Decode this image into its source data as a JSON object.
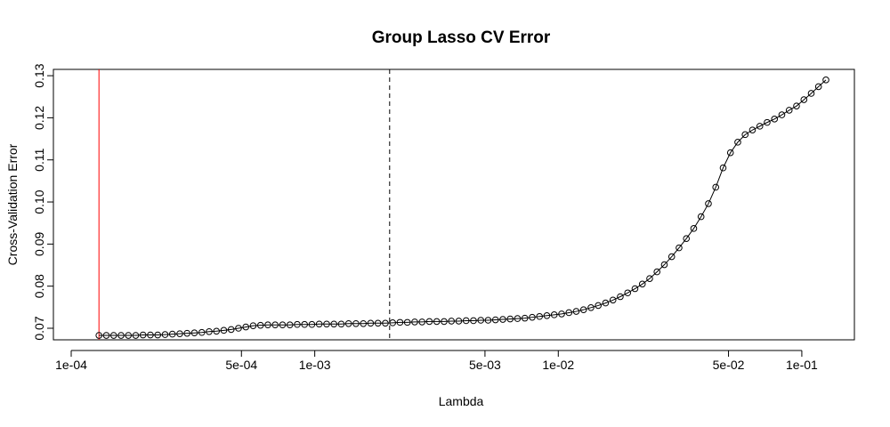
{
  "chart_data": {
    "type": "line",
    "title": "Group Lasso CV Error",
    "x_label": "Lambda",
    "y_label": "Cross-Validation Error",
    "x_scale": "log",
    "color": "#000000",
    "x": [
      0.00013,
      0.0001394,
      0.0001494,
      0.0001602,
      0.0001717,
      0.000184,
      0.0001972,
      0.0002114,
      0.0002266,
      0.0002429,
      0.0002603,
      0.0002791,
      0.0002991,
      0.0003206,
      0.0003437,
      0.0003684,
      0.0003949,
      0.0004233,
      0.0004537,
      0.0004863,
      0.0005212,
      0.0005587,
      0.0005988,
      0.0006419,
      0.000688,
      0.0007375,
      0.0007905,
      0.0008473,
      0.0009082,
      0.0009736,
      0.001043,
      0.001119,
      0.001199,
      0.001285,
      0.001377,
      0.001476,
      0.001583,
      0.001696,
      0.001818,
      0.001949,
      0.002089,
      0.002239,
      0.0024,
      0.002573,
      0.002758,
      0.002956,
      0.003169,
      0.003397,
      0.003641,
      0.003903,
      0.004183,
      0.004484,
      0.004806,
      0.005152,
      0.005522,
      0.005919,
      0.006345,
      0.006801,
      0.00729,
      0.007814,
      0.008375,
      0.008978,
      0.009623,
      0.01032,
      0.01106,
      0.01185,
      0.0127,
      0.01362,
      0.01459,
      0.01564,
      0.01677,
      0.01797,
      0.01927,
      0.02065,
      0.02214,
      0.02373,
      0.02543,
      0.02726,
      0.02922,
      0.03132,
      0.03357,
      0.03599,
      0.03857,
      0.04135,
      0.04432,
      0.04751,
      0.05092,
      0.05458,
      0.05851,
      0.06271,
      0.06722,
      0.07205,
      0.07723,
      0.08279,
      0.08874,
      0.09512,
      0.102,
      0.1093,
      0.1171,
      0.1256
    ],
    "values": [
      0.0683,
      0.0683,
      0.0683,
      0.0683,
      0.0683,
      0.0683,
      0.0684,
      0.0684,
      0.0684,
      0.0685,
      0.0686,
      0.0687,
      0.0688,
      0.0689,
      0.069,
      0.0692,
      0.0693,
      0.0695,
      0.0697,
      0.07,
      0.0703,
      0.0706,
      0.0707,
      0.0708,
      0.0708,
      0.0708,
      0.0708,
      0.0709,
      0.0709,
      0.0709,
      0.071,
      0.071,
      0.071,
      0.071,
      0.0711,
      0.0711,
      0.0711,
      0.0712,
      0.0712,
      0.0712,
      0.0713,
      0.0714,
      0.0714,
      0.0715,
      0.0715,
      0.0716,
      0.0716,
      0.0716,
      0.0717,
      0.0717,
      0.0718,
      0.0718,
      0.0719,
      0.0719,
      0.072,
      0.0721,
      0.0722,
      0.0723,
      0.0724,
      0.0726,
      0.0728,
      0.073,
      0.0732,
      0.0734,
      0.0737,
      0.074,
      0.0744,
      0.0749,
      0.0754,
      0.076,
      0.0767,
      0.0775,
      0.0784,
      0.0794,
      0.0805,
      0.0818,
      0.0834,
      0.0851,
      0.087,
      0.0891,
      0.0913,
      0.0937,
      0.0965,
      0.0996,
      0.1035,
      0.1081,
      0.1117,
      0.1142,
      0.116,
      0.1171,
      0.118,
      0.1189,
      0.1197,
      0.1207,
      0.1218,
      0.1228,
      0.1243,
      0.1258,
      0.1274,
      0.129
    ],
    "xlim": [
      8.45e-05,
      0.1644
    ],
    "ylim": [
      0.06725,
      0.1315
    ],
    "xticks": [
      {
        "value": 0.0001,
        "label": "1e-04"
      },
      {
        "value": 0.0005,
        "label": "5e-04"
      },
      {
        "value": 0.001,
        "label": "1e-03"
      },
      {
        "value": 0.005,
        "label": "5e-03"
      },
      {
        "value": 0.01,
        "label": "1e-02"
      },
      {
        "value": 0.05,
        "label": "5e-02"
      },
      {
        "value": 0.1,
        "label": "1e-01"
      }
    ],
    "yticks": [
      0.07,
      0.08,
      0.09,
      {
        "value": 0.1,
        "label": "0.10"
      },
      0.11,
      0.12,
      0.13
    ],
    "vlines": [
      {
        "value": 0.00013,
        "color": "#ff0000",
        "dashed": false
      },
      {
        "value": 0.00203,
        "color": "#000000",
        "dashed": true
      }
    ]
  }
}
